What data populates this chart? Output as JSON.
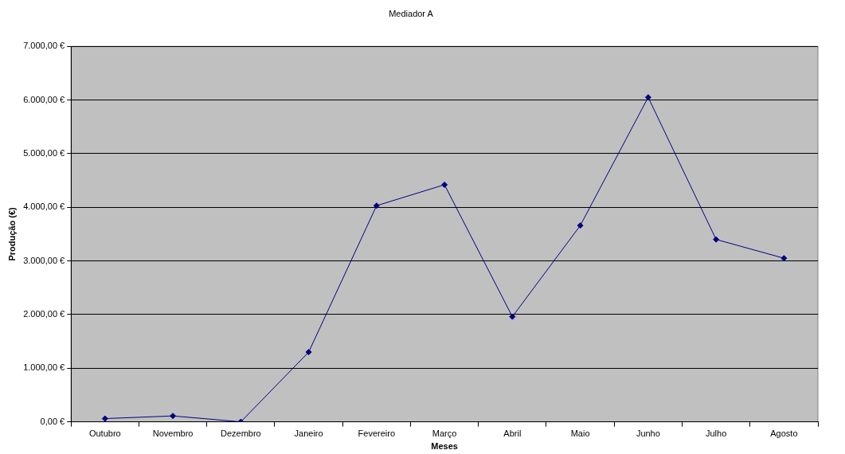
{
  "chart_data": {
    "type": "line",
    "title": "Mediador A",
    "xlabel": "Meses",
    "ylabel": "Produção (€)",
    "categories": [
      "Outubro",
      "Novembro",
      "Dezembro",
      "Janeiro",
      "Fevereiro",
      "Março",
      "Abril",
      "Maio",
      "Junho",
      "Julho",
      "Agosto"
    ],
    "series": [
      {
        "color": "#000080",
        "values": [
          60,
          110,
          0,
          1300,
          4030,
          4420,
          1960,
          3660,
          6050,
          3400,
          3050
        ]
      }
    ],
    "ylim": [
      0,
      7000
    ],
    "yticks": [
      {
        "value": 0,
        "label": "0,00 €"
      },
      {
        "value": 1000,
        "label": "1.000,00 €"
      },
      {
        "value": 2000,
        "label": "2.000,00 €"
      },
      {
        "value": 3000,
        "label": "3.000,00 €"
      },
      {
        "value": 4000,
        "label": "4.000,00 €"
      },
      {
        "value": 5000,
        "label": "5.000,00 €"
      },
      {
        "value": 6000,
        "label": "6.000,00 €"
      },
      {
        "value": 7000,
        "label": "7.000,00 €"
      }
    ],
    "grid": "y",
    "legend": false,
    "marker": "diamond",
    "line_style": "solid"
  }
}
